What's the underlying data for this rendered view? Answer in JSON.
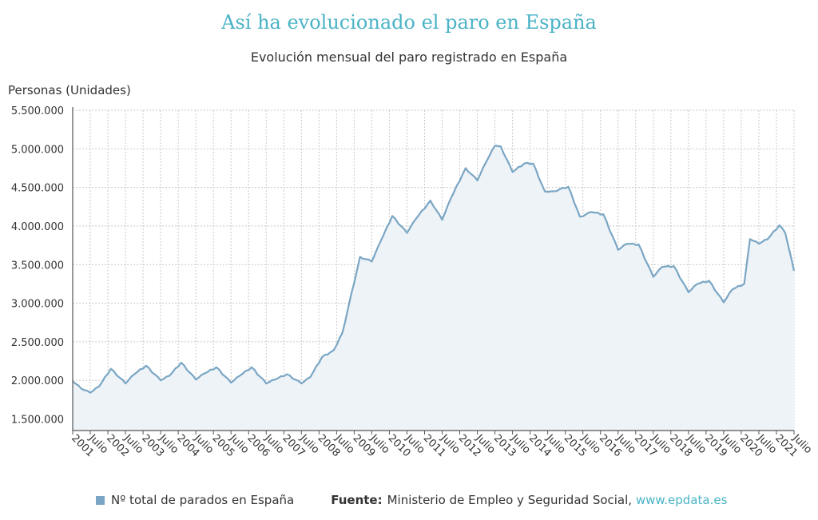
{
  "title": "Así ha evolucionado el paro en España",
  "subtitle": "Evolución mensual del paro registrado en España",
  "legend": {
    "label": "Nº total de parados en España",
    "color": "#7aa6c4"
  },
  "source": {
    "label": "Fuente:",
    "text": "Ministerio de Empleo y Seguridad Social,",
    "link": "www.epdata.es"
  },
  "chart_data": {
    "type": "area",
    "title": "Así ha evolucionado el paro en España",
    "subtitle": "Evolución mensual del paro registrado en España",
    "xlabel": "",
    "ylabel": "Personas (Unidades)",
    "ylim": [
      1350000,
      5500000
    ],
    "yticks": [
      1500000,
      2000000,
      2500000,
      3000000,
      3500000,
      4000000,
      4500000,
      5000000,
      5500000
    ],
    "ytick_labels": [
      "1.500.000",
      "2.000.000",
      "2.500.000",
      "3.000.000",
      "3.500.000",
      "4.000.000",
      "4.500.000",
      "5.000.000",
      "5.500.000"
    ],
    "x_start": "2001-01",
    "x_end": "2021-07",
    "xtick_labels": [
      "2001",
      "Julio",
      "2002",
      "Julio",
      "2003",
      "Julio",
      "2004",
      "Julio",
      "2005",
      "Julio",
      "2006",
      "Julio",
      "2007",
      "Julio",
      "2008",
      "Julio",
      "2009",
      "Julio",
      "2010",
      "Julio",
      "2011",
      "Julio",
      "2012",
      "Julio",
      "2013",
      "Julio",
      "2014",
      "Julio",
      "2015",
      "Julio",
      "2016",
      "Julio",
      "2017",
      "Julio",
      "2018",
      "Julio",
      "2019",
      "Julio",
      "2020",
      "Julio",
      "2021",
      "Julio"
    ],
    "grid": true,
    "line_color": "#7aa6c4",
    "fill_color": "#eef3f8",
    "series": [
      {
        "name": "Nº total de parados en España",
        "anchors": [
          [
            "2001-01",
            1990000
          ],
          [
            "2001-04",
            1890000
          ],
          [
            "2001-07",
            1840000
          ],
          [
            "2001-10",
            1920000
          ],
          [
            "2002-02",
            2150000
          ],
          [
            "2002-07",
            1960000
          ],
          [
            "2002-10",
            2080000
          ],
          [
            "2003-02",
            2190000
          ],
          [
            "2003-07",
            2000000
          ],
          [
            "2003-10",
            2060000
          ],
          [
            "2004-02",
            2230000
          ],
          [
            "2004-07",
            2010000
          ],
          [
            "2004-10",
            2090000
          ],
          [
            "2005-02",
            2170000
          ],
          [
            "2005-07",
            1970000
          ],
          [
            "2005-10",
            2060000
          ],
          [
            "2006-02",
            2170000
          ],
          [
            "2006-07",
            1960000
          ],
          [
            "2006-10",
            2010000
          ],
          [
            "2007-02",
            2080000
          ],
          [
            "2007-07",
            1960000
          ],
          [
            "2007-10",
            2040000
          ],
          [
            "2008-02",
            2300000
          ],
          [
            "2008-06",
            2390000
          ],
          [
            "2008-09",
            2620000
          ],
          [
            "2009-03",
            3600000
          ],
          [
            "2009-07",
            3540000
          ],
          [
            "2009-10",
            3800000
          ],
          [
            "2010-02",
            4130000
          ],
          [
            "2010-07",
            3910000
          ],
          [
            "2010-10",
            4090000
          ],
          [
            "2011-03",
            4330000
          ],
          [
            "2011-07",
            4080000
          ],
          [
            "2011-10",
            4360000
          ],
          [
            "2012-03",
            4750000
          ],
          [
            "2012-07",
            4590000
          ],
          [
            "2012-10",
            4830000
          ],
          [
            "2013-01",
            5040000
          ],
          [
            "2013-03",
            5030000
          ],
          [
            "2013-07",
            4700000
          ],
          [
            "2013-11",
            4810000
          ],
          [
            "2014-02",
            4810000
          ],
          [
            "2014-06",
            4450000
          ],
          [
            "2014-09",
            4450000
          ],
          [
            "2015-02",
            4510000
          ],
          [
            "2015-06",
            4120000
          ],
          [
            "2015-10",
            4180000
          ],
          [
            "2016-02",
            4150000
          ],
          [
            "2016-07",
            3690000
          ],
          [
            "2016-10",
            3770000
          ],
          [
            "2017-02",
            3760000
          ],
          [
            "2017-07",
            3340000
          ],
          [
            "2017-10",
            3470000
          ],
          [
            "2018-02",
            3480000
          ],
          [
            "2018-07",
            3140000
          ],
          [
            "2018-10",
            3250000
          ],
          [
            "2019-02",
            3290000
          ],
          [
            "2019-07",
            3010000
          ],
          [
            "2019-10",
            3180000
          ],
          [
            "2020-02",
            3250000
          ],
          [
            "2020-04",
            3830000
          ],
          [
            "2020-07",
            3770000
          ],
          [
            "2020-10",
            3830000
          ],
          [
            "2021-02",
            4010000
          ],
          [
            "2021-04",
            3910000
          ],
          [
            "2021-07",
            3420000
          ]
        ]
      }
    ]
  }
}
